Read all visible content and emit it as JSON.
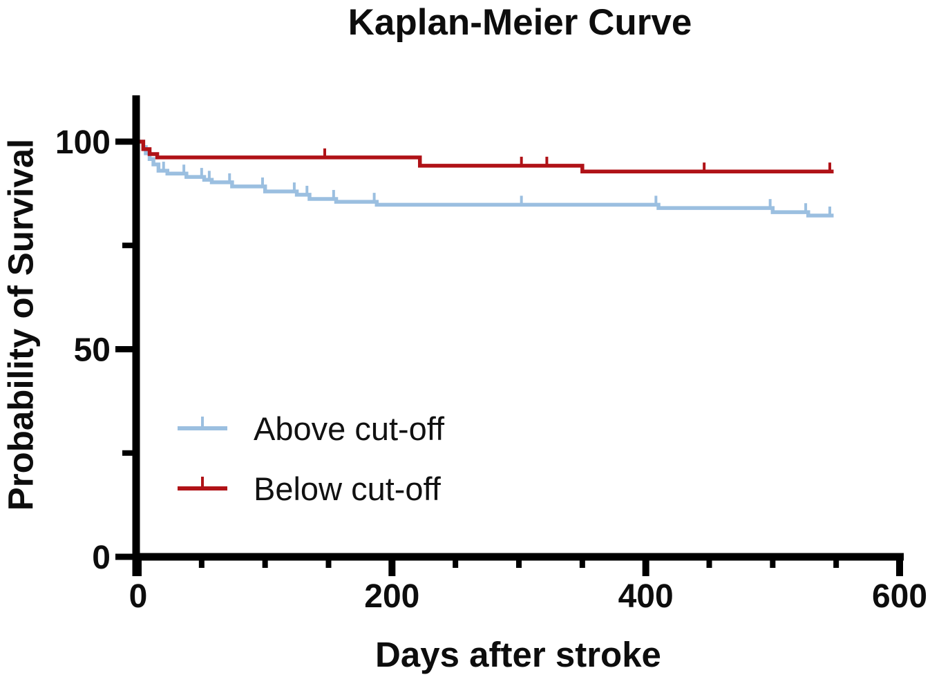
{
  "chart": {
    "title": "Kaplan-Meier Curve",
    "xlabel": "Days after stroke",
    "ylabel": "Probability of Survival"
  },
  "chart_data": {
    "type": "line",
    "subtype": "kaplan_meier_step_survival",
    "title": "Kaplan-Meier Curve",
    "xlabel": "Days after stroke",
    "ylabel": "Probability of Survival",
    "xlim": [
      0,
      600
    ],
    "ylim": [
      0,
      100
    ],
    "x_major_ticks": [
      0,
      200,
      400,
      600
    ],
    "x_minor_ticks": [
      50,
      100,
      150,
      250,
      300,
      350,
      450,
      500,
      550
    ],
    "y_major_ticks": [
      100,
      50,
      0
    ],
    "y_minor_ticks": [
      75,
      25
    ],
    "grid": false,
    "legend_position": "inside-left-middle",
    "axis_color": "#000000",
    "series": [
      {
        "name": "Above cut-off",
        "color": "#9BBFE0",
        "steps": [
          [
            0,
            100
          ],
          [
            4,
            98.7
          ],
          [
            6,
            97.2
          ],
          [
            9,
            95.8
          ],
          [
            12,
            94.5
          ],
          [
            16,
            93.0
          ],
          [
            23,
            92.3
          ],
          [
            38,
            91.5
          ],
          [
            52,
            90.8
          ],
          [
            58,
            90.2
          ],
          [
            74,
            89.2
          ],
          [
            100,
            88.0
          ],
          [
            125,
            87.2
          ],
          [
            135,
            86.2
          ],
          [
            156,
            85.5
          ],
          [
            188,
            84.8
          ],
          [
            410,
            84.0
          ],
          [
            500,
            83.0
          ],
          [
            528,
            82.2
          ]
        ],
        "end_day": 548,
        "censor_days": [
          20,
          36,
          50,
          56,
          72,
          98,
          123,
          133,
          154,
          186,
          302,
          408,
          498,
          526,
          545
        ]
      },
      {
        "name": "Below cut-off",
        "color": "#B01217",
        "steps": [
          [
            0,
            100
          ],
          [
            4,
            98.2
          ],
          [
            9,
            97.0
          ],
          [
            15,
            96.2
          ],
          [
            222,
            94.2
          ],
          [
            350,
            92.8
          ]
        ],
        "end_day": 548,
        "censor_days": [
          147,
          302,
          322,
          446,
          545
        ]
      }
    ]
  }
}
